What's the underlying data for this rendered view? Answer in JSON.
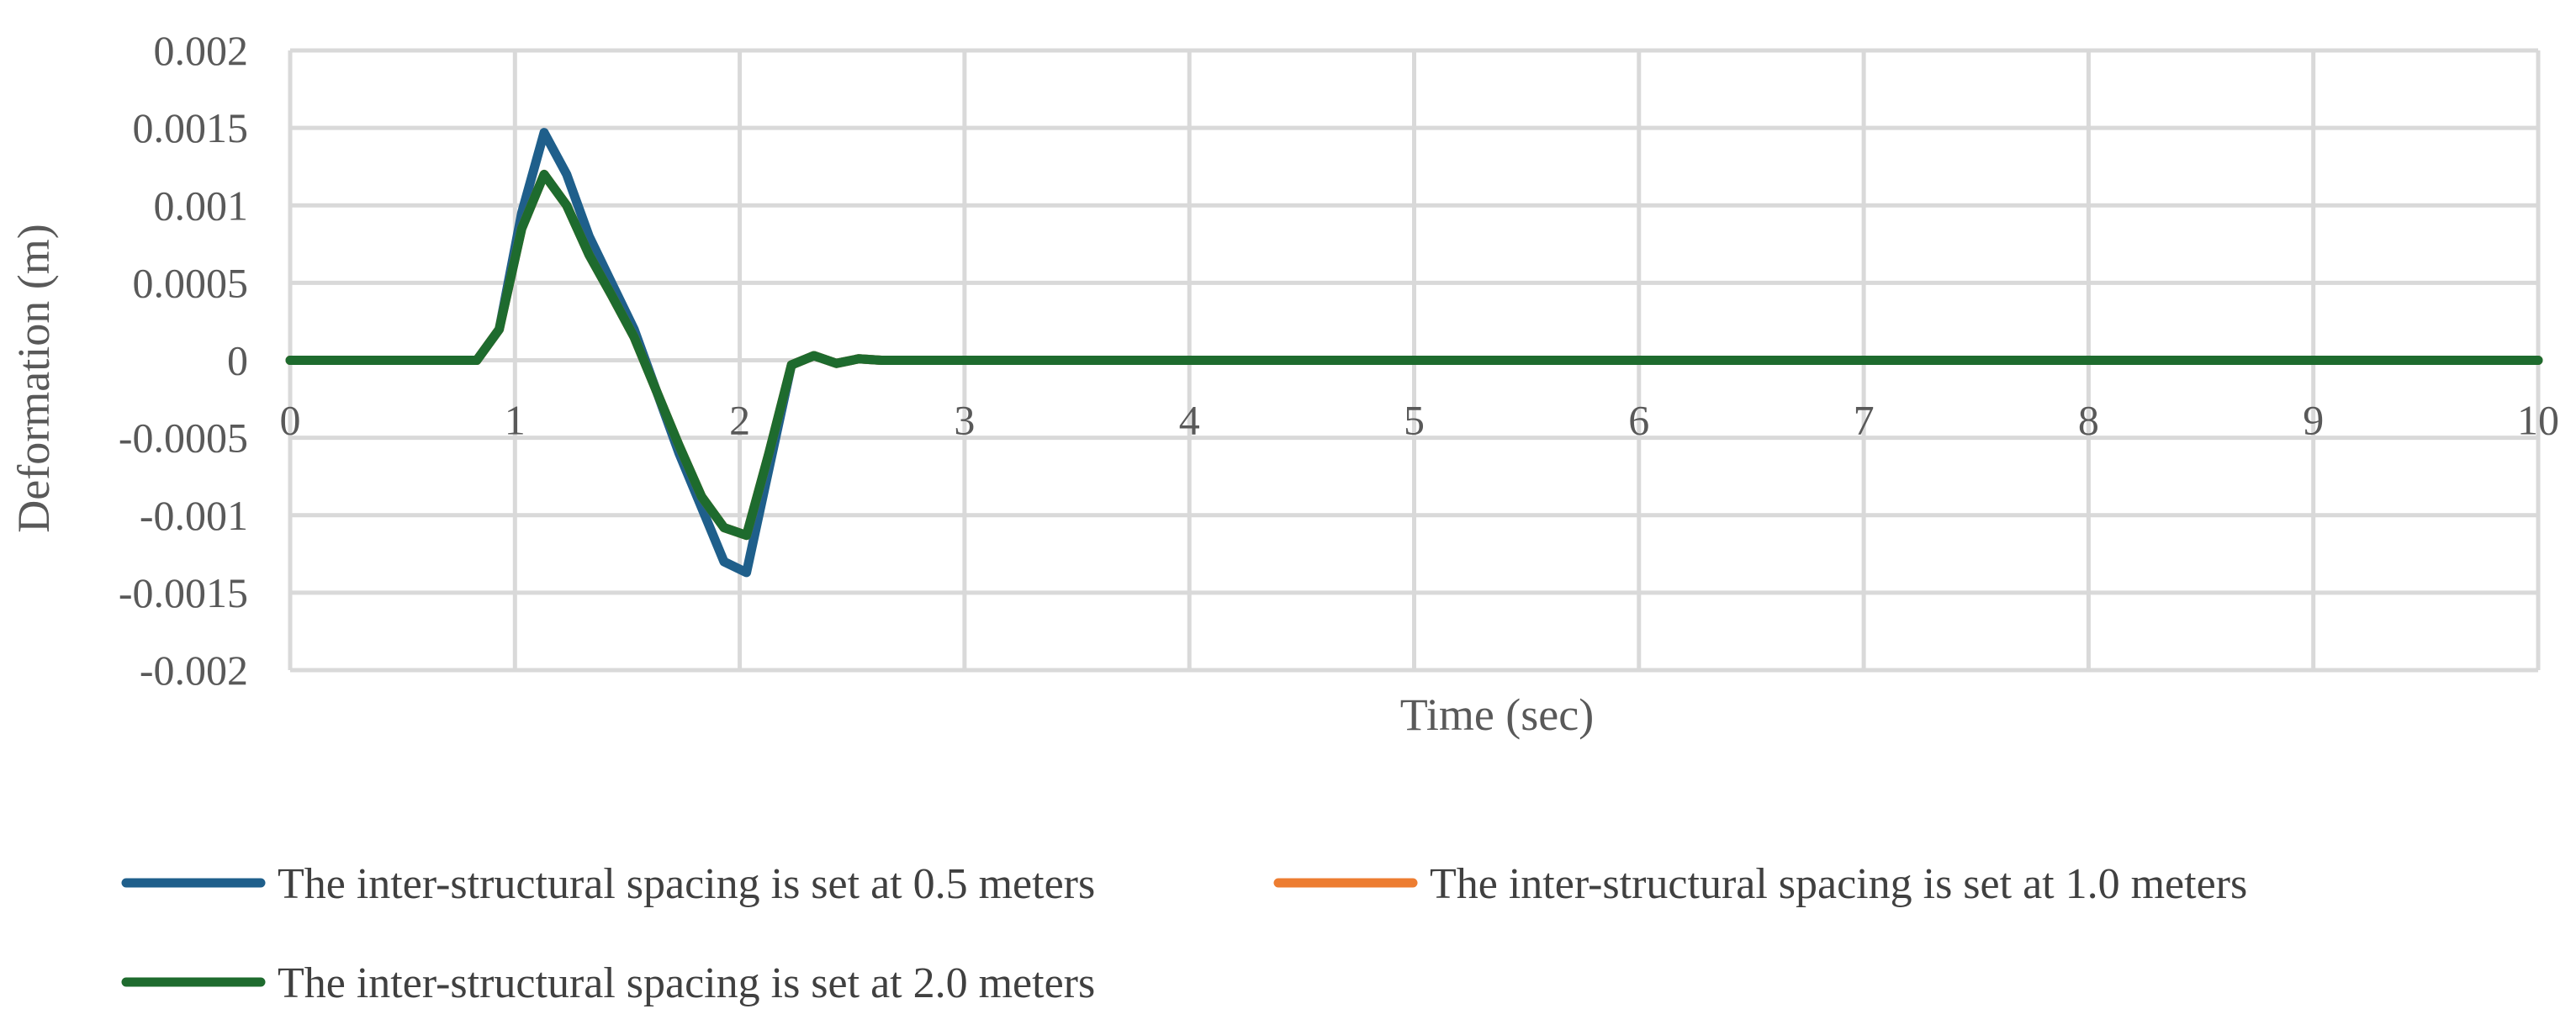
{
  "chart_data": {
    "type": "line",
    "title": "",
    "xlabel": "Time (sec)",
    "ylabel": "Deformation (m)",
    "xlim": [
      0,
      10
    ],
    "ylim": [
      -0.002,
      0.002
    ],
    "x_ticks": [
      "0",
      "1",
      "2",
      "3",
      "4",
      "5",
      "6",
      "7",
      "8",
      "9",
      "10"
    ],
    "y_ticks": [
      "0.002",
      "0.0015",
      "0.001",
      "0.0005",
      "0",
      "-0.0005",
      "-0.001",
      "-0.0015",
      "-0.002"
    ],
    "grid": true,
    "legend_position": "bottom",
    "series": [
      {
        "name": "The inter-structural spacing is set at 0.5 meters",
        "color": "#1f5f8b",
        "x": [
          0,
          0.83,
          0.93,
          1.03,
          1.13,
          1.23,
          1.33,
          1.43,
          1.53,
          1.63,
          1.73,
          1.83,
          1.93,
          2.03,
          2.13,
          2.23,
          2.33,
          2.43,
          2.53,
          2.63,
          2.73,
          3,
          10
        ],
        "y": [
          0,
          0,
          0.0002,
          0.00095,
          0.00147,
          0.0012,
          0.0008,
          0.0005,
          0.0002,
          -0.0002,
          -0.0006,
          -0.00095,
          -0.0013,
          -0.00137,
          -0.0007,
          -3e-05,
          3e-05,
          -2e-05,
          1e-05,
          0,
          0,
          0,
          0
        ]
      },
      {
        "name": "The inter-structural spacing is set at 1.0 meters",
        "color": "#ed7d31",
        "x": [
          0,
          0.83,
          0.93,
          1.03,
          1.13,
          1.23,
          1.33,
          1.43,
          1.53,
          1.63,
          1.73,
          1.83,
          1.93,
          2.03,
          2.13,
          2.23,
          2.33,
          2.43,
          2.53,
          2.63,
          2.73,
          3,
          10
        ],
        "y": [
          0,
          0,
          0.0002,
          0.00085,
          0.0012,
          0.001,
          0.00068,
          0.00042,
          0.00015,
          -0.0002,
          -0.00055,
          -0.00088,
          -0.00108,
          -0.00113,
          -0.0006,
          -3e-05,
          3e-05,
          -2e-05,
          1e-05,
          0,
          0,
          0,
          0
        ]
      },
      {
        "name": "The inter-structural spacing is set at 2.0 meters",
        "color": "#1e6b2e",
        "x": [
          0,
          0.83,
          0.93,
          1.03,
          1.13,
          1.23,
          1.33,
          1.43,
          1.53,
          1.63,
          1.73,
          1.83,
          1.93,
          2.03,
          2.13,
          2.23,
          2.33,
          2.43,
          2.53,
          2.63,
          2.73,
          3,
          10
        ],
        "y": [
          0,
          0,
          0.0002,
          0.00085,
          0.0012,
          0.001,
          0.00068,
          0.00042,
          0.00015,
          -0.0002,
          -0.00055,
          -0.00088,
          -0.00108,
          -0.00113,
          -0.0006,
          -3e-05,
          3e-05,
          -2e-05,
          1e-05,
          0,
          0,
          0,
          0
        ]
      }
    ]
  }
}
